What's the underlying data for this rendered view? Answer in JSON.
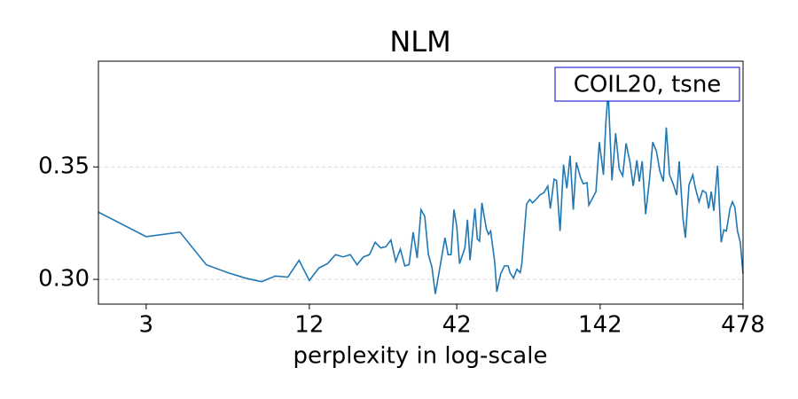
{
  "chart_data": {
    "type": "line",
    "title": "NLM",
    "x_label": "perplexity in log-scale",
    "annotation": "COIL20, tsne",
    "x_scale": "log",
    "color": "#1f77b4",
    "annotation_border_color": "#0000cc",
    "grid": true,
    "x": [
      2,
      3,
      4,
      5,
      6,
      7,
      8,
      9,
      10,
      11,
      12,
      13,
      14,
      15,
      16,
      17,
      18,
      19,
      20,
      21,
      22,
      23,
      24,
      25,
      26,
      27,
      28,
      29,
      30,
      31,
      32,
      33,
      34,
      35,
      36,
      38,
      39,
      40,
      41,
      42,
      43,
      45,
      46,
      47,
      49,
      50,
      51,
      52,
      54,
      55,
      56,
      58,
      59,
      61,
      63,
      65,
      66,
      68,
      70,
      72,
      73,
      76,
      78,
      80,
      83,
      85,
      88,
      91,
      93,
      96,
      98,
      101,
      104,
      107,
      110,
      113,
      116,
      120,
      123,
      127,
      129,
      133,
      137,
      141,
      146,
      149,
      152,
      157,
      162,
      167,
      172,
      177,
      183,
      188,
      194,
      198,
      203,
      209,
      216,
      222,
      229,
      236,
      243,
      249,
      256,
      264,
      272,
      278,
      287,
      293,
      302,
      312,
      319,
      329,
      339,
      349,
      357,
      365,
      373,
      385,
      397,
      406,
      415,
      428,
      437,
      446,
      456,
      467,
      478
    ],
    "values": [
      0.3299,
      0.319,
      0.321,
      0.3065,
      0.303,
      0.3005,
      0.299,
      0.3015,
      0.301,
      0.3085,
      0.2995,
      0.305,
      0.307,
      0.311,
      0.31,
      0.311,
      0.3065,
      0.31,
      0.311,
      0.3165,
      0.314,
      0.3145,
      0.3175,
      0.308,
      0.3135,
      0.306,
      0.3065,
      0.321,
      0.3095,
      0.331,
      0.328,
      0.311,
      0.3055,
      0.2935,
      0.302,
      0.3185,
      0.311,
      0.311,
      0.331,
      0.3235,
      0.307,
      0.314,
      0.3265,
      0.3085,
      0.3315,
      0.318,
      0.317,
      0.334,
      0.3225,
      0.32,
      0.3215,
      0.3075,
      0.2945,
      0.3025,
      0.306,
      0.306,
      0.303,
      0.3005,
      0.3045,
      0.303,
      0.307,
      0.3335,
      0.3355,
      0.334,
      0.336,
      0.3375,
      0.3385,
      0.3415,
      0.3315,
      0.3445,
      0.344,
      0.3215,
      0.351,
      0.3405,
      0.355,
      0.331,
      0.352,
      0.3455,
      0.3425,
      0.343,
      0.333,
      0.336,
      0.339,
      0.361,
      0.3465,
      0.3695,
      0.3835,
      0.344,
      0.365,
      0.349,
      0.346,
      0.3605,
      0.352,
      0.3415,
      0.353,
      0.3435,
      0.3525,
      0.329,
      0.3445,
      0.361,
      0.357,
      0.348,
      0.3435,
      0.3675,
      0.3465,
      0.3425,
      0.3375,
      0.3525,
      0.327,
      0.3185,
      0.342,
      0.3465,
      0.3405,
      0.3345,
      0.3395,
      0.3385,
      0.3315,
      0.339,
      0.3305,
      0.3505,
      0.3165,
      0.322,
      0.3215,
      0.3315,
      0.3345,
      0.332,
      0.3215,
      0.3165,
      0.3025
    ],
    "xlim": [
      2,
      478
    ],
    "xticks": [
      3,
      12,
      42,
      142,
      478
    ],
    "ylim": [
      0.289,
      0.397
    ],
    "yticks": [
      {
        "value": 0.3,
        "label": "0.30"
      },
      {
        "value": 0.35,
        "label": "0.35"
      }
    ]
  }
}
